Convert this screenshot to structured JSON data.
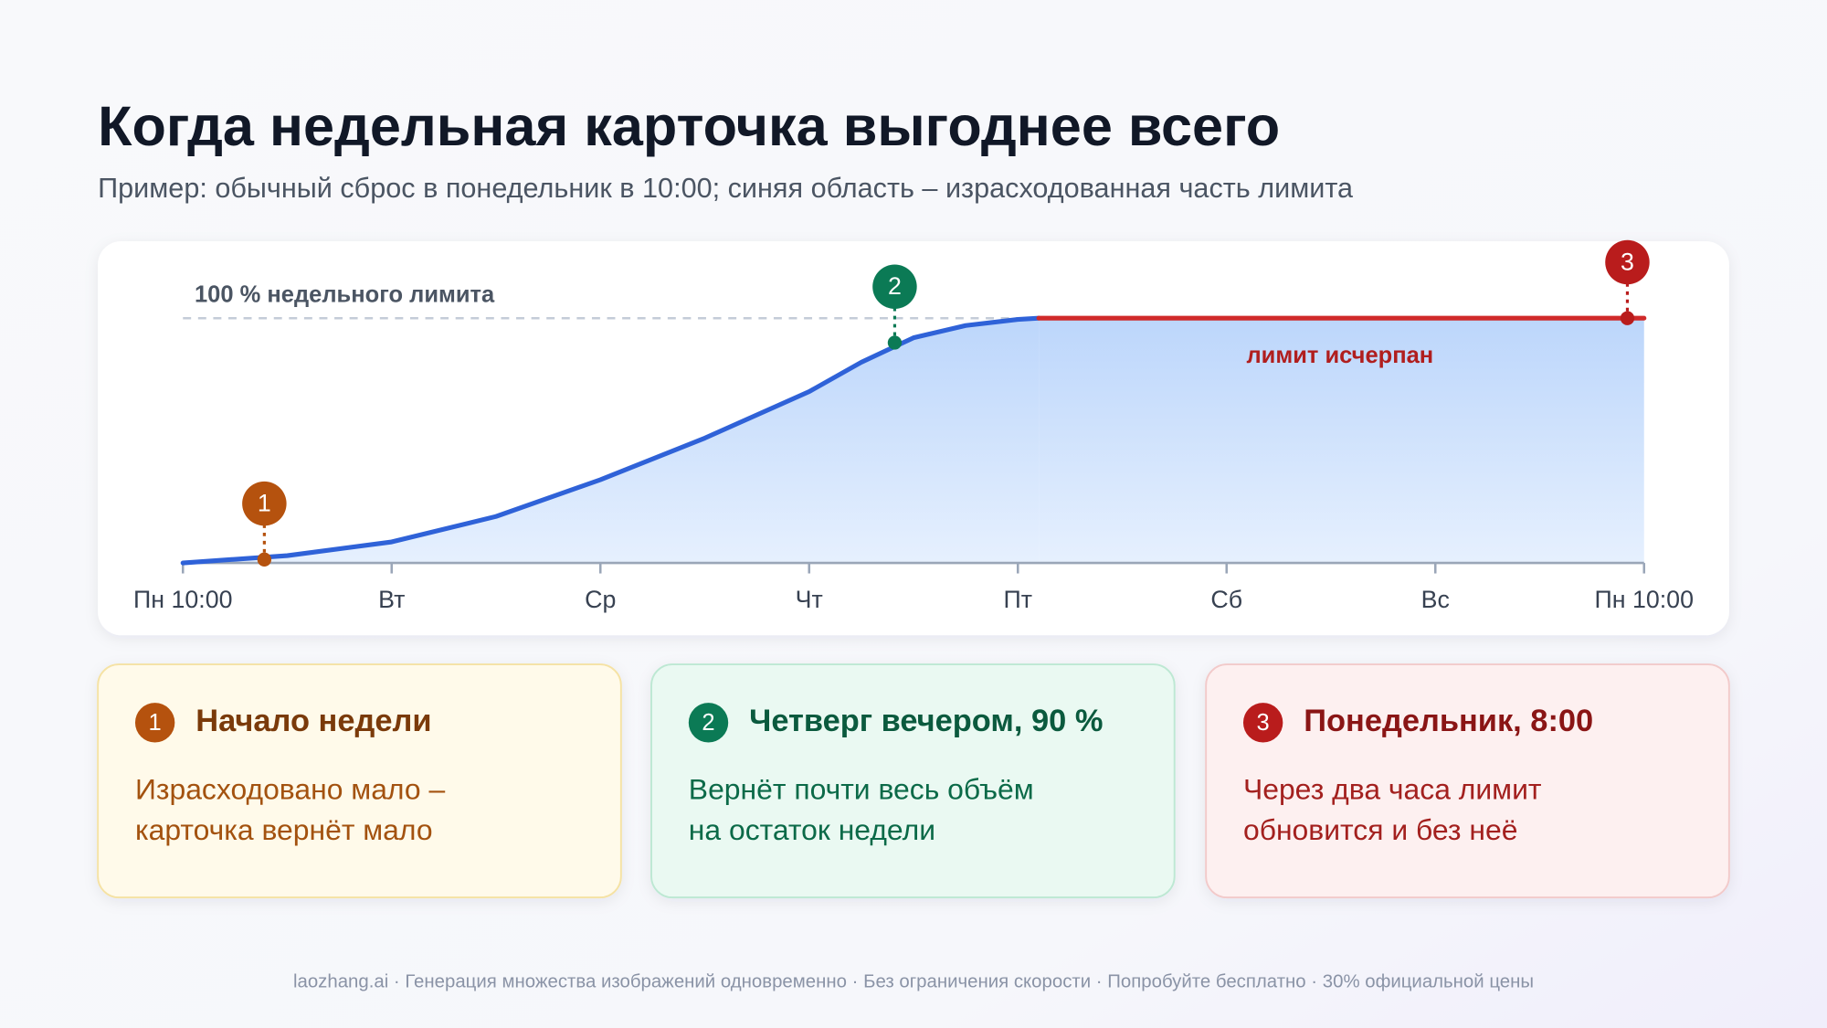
{
  "chart_data": {
    "type": "area",
    "title": "Когда недельная карточка выгоднее всего",
    "subtitle": "Пример: обычный сброс в понедельник в 10:00; синяя область – израсходованная часть лимита",
    "xlim": [
      0,
      7
    ],
    "xticks": [
      {
        "value": 0,
        "label": "Пн 10:00"
      },
      {
        "value": 1,
        "label": "Вт"
      },
      {
        "value": 2,
        "label": "Ср"
      },
      {
        "value": 3,
        "label": "Чт"
      },
      {
        "value": 4,
        "label": "Пт"
      },
      {
        "value": 5,
        "label": "Сб"
      },
      {
        "value": 6,
        "label": "Вс"
      },
      {
        "value": 7,
        "label": "Пн 10:00"
      }
    ],
    "ylim": [
      0,
      100
    ],
    "grid": false,
    "reference_line": {
      "value": 100,
      "label": "100 % недельного лимита"
    },
    "series": [
      {
        "color": "#2f62d8",
        "x": [
          0,
          0.5,
          1,
          1.5,
          2,
          2.5,
          3,
          3.25,
          3.5,
          3.75,
          4,
          4.1
        ],
        "values": [
          0,
          3,
          8.6,
          19,
          34,
          51,
          70,
          82,
          92,
          97,
          99.5,
          100
        ]
      },
      {
        "color": "#d02a2a",
        "x": [
          4.1,
          7
        ],
        "values": [
          100,
          100
        ]
      }
    ],
    "annotation": "лимит исчерпан",
    "markers": [
      {
        "label": "1",
        "x": 0.39,
        "y": 1.4,
        "color": "#b5520e"
      },
      {
        "label": "2",
        "x": 3.41,
        "y": 90,
        "color": "#0b7a55"
      },
      {
        "label": "3",
        "x": 6.92,
        "y": 100,
        "color": "#b91c1c"
      }
    ]
  },
  "cards": [
    {
      "number": "1",
      "title": "Начало недели",
      "lines": [
        "Израсходовано мало –",
        "карточка вернёт мало"
      ],
      "bg": "#fffaea",
      "border": "#f5e2a4",
      "badge": "#b5520e",
      "title_color": "#7a3a0a",
      "text_color": "#a3520f"
    },
    {
      "number": "2",
      "title": "Четверг вечером, 90 %",
      "lines": [
        "Вернёт почти весь объём",
        "на остаток недели"
      ],
      "bg": "#eaf9f2",
      "border": "#bde8d3",
      "badge": "#0b7a55",
      "title_color": "#0b5a3e",
      "text_color": "#0b6a48"
    },
    {
      "number": "3",
      "title": "Понедельник, 8:00",
      "lines": [
        "Через два часа лимит",
        "обновится и без неё"
      ],
      "bg": "#fdf0f0",
      "border": "#f2caca",
      "badge": "#b91c1c",
      "title_color": "#8a1515",
      "text_color": "#a3201e"
    }
  ],
  "footer": "laozhang.ai · Генерация множества изображений одновременно · Без ограничения скорости · Попробуйте бесплатно · 30% официальной цены"
}
